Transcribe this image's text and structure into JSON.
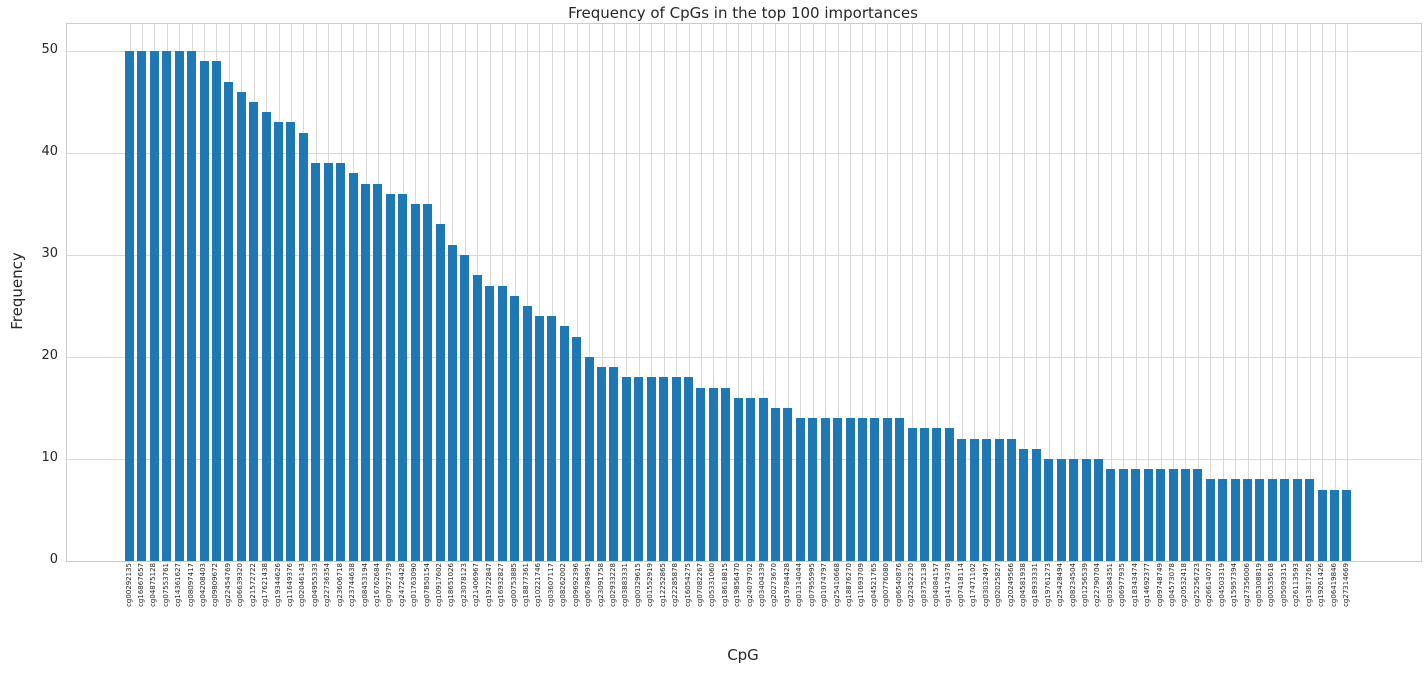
{
  "figure": {
    "title": "Frequency of CpGs in the top 100 importances",
    "xlabel": "CpG",
    "ylabel": "Frequency"
  },
  "chart_data": {
    "type": "bar",
    "title": "Frequency of CpGs in the top 100 importances",
    "xlabel": "CpG",
    "ylabel": "Frequency",
    "ylim": [
      0,
      52.5
    ],
    "yticks": [
      0,
      10,
      20,
      30,
      40,
      50
    ],
    "grid": "on",
    "legend": "none",
    "bar_color": "#1f77b4",
    "grid_color": "#d9d9d9",
    "background_color": "#ffffff",
    "x_tick_rotation": 90,
    "categories": [
      "cg00292135",
      "cg16867657",
      "cg04875128",
      "cg07553761",
      "cg14361627",
      "cg08097417",
      "cg04208403",
      "cg09809672",
      "cg22454769",
      "cg06639320",
      "cg21572722",
      "cg17621438",
      "cg19344626",
      "cg11649376",
      "cg02046143",
      "cg04955333",
      "cg22736354",
      "cg23606718",
      "cg23744638",
      "cg08453194",
      "cg16762684",
      "cg07927379",
      "cg24724428",
      "cg01763090",
      "cg07850154",
      "cg10917602",
      "cg18651026",
      "cg23078123",
      "cg21406967",
      "cg19722847",
      "cg16932827",
      "cg00753885",
      "cg18877361",
      "cg10221746",
      "cg03607117",
      "cg08262002",
      "cg09692396",
      "cg06784991",
      "cg23091758",
      "cg02933228",
      "cg03883331",
      "cg00329615",
      "cg01552919",
      "cg12252865",
      "cg22285878",
      "cg16054275",
      "cg07082267",
      "cg05331060",
      "cg18618815",
      "cg19856470",
      "cg24079702",
      "cg03404339",
      "cg20273670",
      "cg19784428",
      "cg01314044",
      "cg07955995",
      "cg01074797",
      "cg25410668",
      "cg18876270",
      "cg11693709",
      "cg04521765",
      "cg00776080",
      "cg06540876",
      "cg22452230",
      "cg03752138",
      "cg04084157",
      "cg14174378",
      "cg07418114",
      "cg17471102",
      "cg03032497",
      "cg02025827",
      "cg20249566",
      "cg04581938",
      "cg18933331",
      "cg19761273",
      "cg25428494",
      "cg08234504",
      "cg01256539",
      "cg22790704",
      "cg03584351",
      "cg06977935",
      "cg18343474",
      "cg14692377",
      "cg09748749",
      "cg04573078",
      "cg20532418",
      "cg25256723",
      "cg26614073",
      "cg04503319",
      "cg15957394",
      "cg27356006",
      "cg05308819",
      "cg00535618",
      "cg05093315",
      "cg26113593",
      "cg13817265",
      "cg19261426",
      "cg06419846",
      "cg27314669"
    ],
    "values": [
      50,
      50,
      50,
      50,
      50,
      50,
      49,
      49,
      47,
      46,
      45,
      44,
      43,
      43,
      42,
      39,
      39,
      39,
      38,
      37,
      37,
      36,
      36,
      35,
      35,
      33,
      31,
      30,
      28,
      27,
      27,
      26,
      25,
      24,
      24,
      23,
      22,
      20,
      19,
      19,
      18,
      18,
      18,
      18,
      18,
      18,
      17,
      17,
      17,
      16,
      16,
      16,
      15,
      15,
      14,
      14,
      14,
      14,
      14,
      14,
      14,
      14,
      14,
      13,
      13,
      13,
      13,
      12,
      12,
      12,
      12,
      12,
      11,
      11,
      10,
      10,
      10,
      10,
      10,
      9,
      9,
      9,
      9,
      9,
      9,
      9,
      9,
      8,
      8,
      8,
      8,
      8,
      8,
      8,
      8,
      8,
      7,
      7,
      7
    ]
  }
}
